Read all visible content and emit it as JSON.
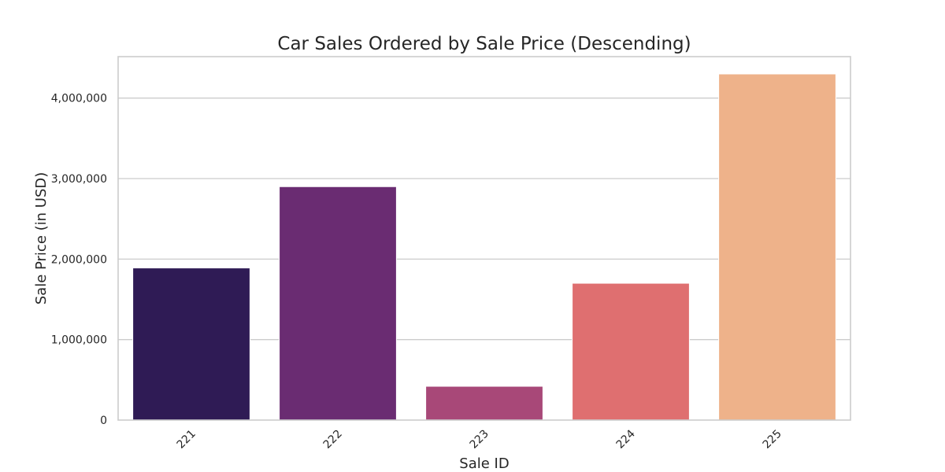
{
  "chart_data": {
    "type": "bar",
    "title": "Car Sales Ordered by Sale Price (Descending)",
    "xlabel": "Sale ID",
    "ylabel": "Sale Price (in USD)",
    "categories": [
      "221",
      "222",
      "223",
      "224",
      "225"
    ],
    "values": [
      1890000,
      2900000,
      420000,
      1700000,
      4300000
    ],
    "colors": [
      "#2f1b55",
      "#6a2c72",
      "#a84878",
      "#df6f70",
      "#eeb28a"
    ],
    "yticks": [
      0,
      1000000,
      2000000,
      3000000,
      4000000
    ],
    "ytick_labels": [
      "0",
      "1,000,000",
      "2,000,000",
      "3,000,000",
      "4,000,000"
    ],
    "ylim": [
      0,
      4515000
    ],
    "grid": "horizontal",
    "legend": "none"
  }
}
